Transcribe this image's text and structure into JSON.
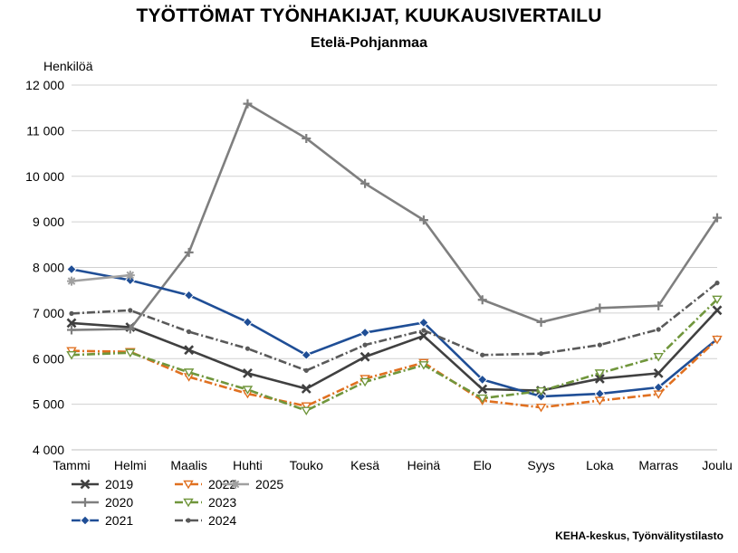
{
  "title": "TYÖTTÖMAT TYÖNHAKIJAT, KUUKAUSIVERTAILU",
  "subtitle": "Etelä-Pohjanmaa",
  "source": "KEHA-keskus, Työnvälitystilasto",
  "chart_data": {
    "type": "line",
    "title": "TYÖTTÖMAT TYÖNHAKIJAT, KUUKAUSIVERTAILU",
    "subtitle": "Etelä-Pohjanmaa",
    "xlabel": "",
    "ylabel": "Henkilöä",
    "ylim": [
      4000,
      12000
    ],
    "yticks": [
      4000,
      5000,
      6000,
      7000,
      8000,
      9000,
      10000,
      11000,
      12000
    ],
    "ytick_labels": [
      "4 000",
      "5 000",
      "6 000",
      "7 000",
      "8 000",
      "9 000",
      "10 000",
      "11 000",
      "12 000"
    ],
    "grid": true,
    "legend_position": "bottom-left",
    "categories": [
      "Tammi",
      "Helmi",
      "Maalis",
      "Huhti",
      "Touko",
      "Kesä",
      "Heinä",
      "Elo",
      "Syys",
      "Loka",
      "Marras",
      "Joulu"
    ],
    "series": [
      {
        "name": "2019",
        "color": "#404040",
        "dash": "solid",
        "marker": "x",
        "values": [
          6780,
          6690,
          6190,
          5680,
          5340,
          6040,
          6500,
          5330,
          5300,
          5560,
          5680,
          7060
        ]
      },
      {
        "name": "2020",
        "color": "#7f7f7f",
        "dash": "solid",
        "marker": "plus",
        "values": [
          6630,
          6650,
          8330,
          11590,
          10830,
          9840,
          9040,
          7290,
          6800,
          7110,
          7160,
          9090
        ]
      },
      {
        "name": "2021",
        "color": "#1f4e96",
        "dash": "solid",
        "marker": "diamond",
        "values": [
          7960,
          7720,
          7390,
          6800,
          6080,
          6570,
          6790,
          5540,
          5170,
          5230,
          5370,
          6430
        ]
      },
      {
        "name": "2022",
        "color": "#e07020",
        "dash": "dashdot",
        "marker": "triangle",
        "values": [
          6170,
          6150,
          5600,
          5230,
          4960,
          5560,
          5910,
          5080,
          4930,
          5080,
          5220,
          6420
        ]
      },
      {
        "name": "2023",
        "color": "#70963c",
        "dash": "dashdot",
        "marker": "triangle",
        "values": [
          6080,
          6130,
          5700,
          5320,
          4860,
          5490,
          5860,
          5130,
          5290,
          5680,
          6040,
          7300
        ]
      },
      {
        "name": "2024",
        "color": "#595959",
        "dash": "dashdot",
        "marker": "dot",
        "values": [
          6990,
          7060,
          6590,
          6220,
          5740,
          6300,
          6620,
          6080,
          6110,
          6300,
          6640,
          7660
        ]
      },
      {
        "name": "2025",
        "color": "#a0a0a0",
        "dash": "solid",
        "marker": "star",
        "values": [
          7700,
          7830,
          null,
          null,
          null,
          null,
          null,
          null,
          null,
          null,
          null,
          null
        ]
      }
    ]
  },
  "legend": {
    "items": [
      "2019",
      "2022",
      "2025",
      "2020",
      "2023",
      "2021",
      "2024"
    ]
  }
}
